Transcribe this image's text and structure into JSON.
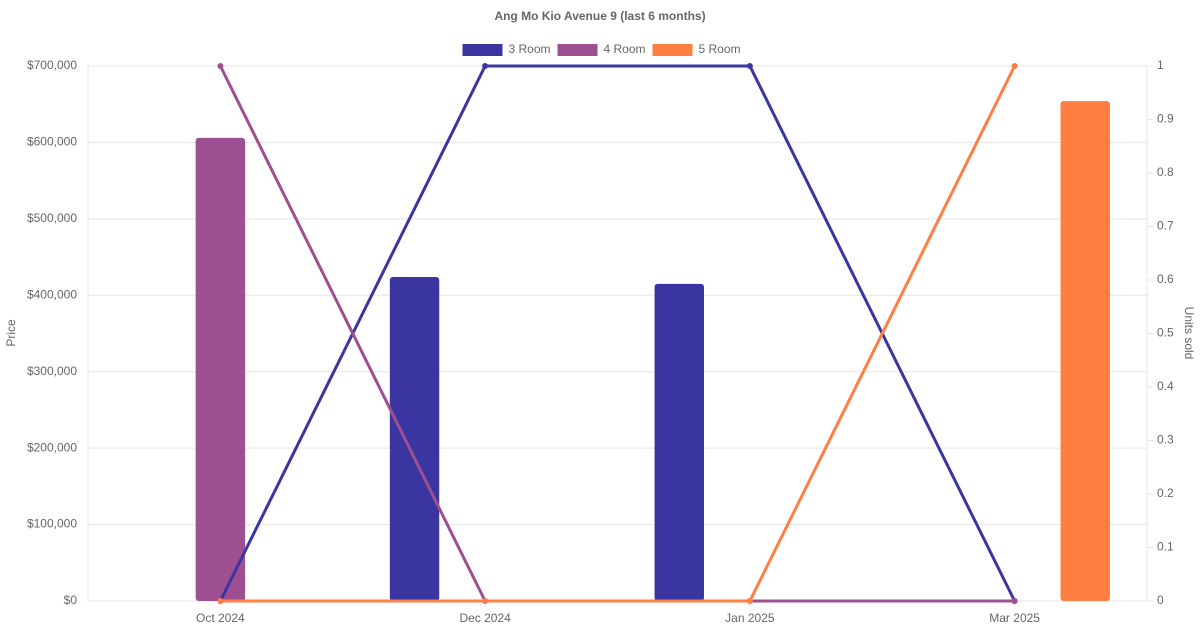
{
  "chart_data": {
    "type": "combo",
    "title": "Ang Mo Kio Avenue 9 (last 6 months)",
    "categories": [
      "Oct 2024",
      "Dec 2024",
      "Jan 2025",
      "Mar 2025"
    ],
    "series": [
      {
        "name": "3 Room",
        "color": "#3a35a0",
        "values": [
          null,
          424000,
          415000,
          null
        ],
        "y2_values": [
          0,
          1,
          1,
          0
        ]
      },
      {
        "name": "4 Room",
        "color": "#9d4f91",
        "values": [
          606000,
          null,
          null,
          null
        ],
        "y2_values": [
          1,
          0,
          0,
          0
        ]
      },
      {
        "name": "5 Room",
        "color": "#ff7e42",
        "values": [
          null,
          null,
          null,
          654000
        ],
        "y2_values": [
          0,
          0,
          0,
          1
        ]
      }
    ],
    "y_label": "Price",
    "y2_label": "Units sold",
    "ylim": [
      0,
      700000
    ],
    "yticks": [
      {
        "value": 0,
        "label": "$0"
      },
      {
        "value": 100000,
        "label": "$100,000"
      },
      {
        "value": 200000,
        "label": "$200,000"
      },
      {
        "value": 300000,
        "label": "$300,000"
      },
      {
        "value": 400000,
        "label": "$400,000"
      },
      {
        "value": 500000,
        "label": "$500,000"
      },
      {
        "value": 600000,
        "label": "$600,000"
      },
      {
        "value": 700000,
        "label": "$700,000"
      }
    ],
    "y2lim": [
      0,
      1
    ],
    "y2ticks": [
      0,
      0.1,
      0.2,
      0.3,
      0.4,
      0.5,
      0.6,
      0.7,
      0.8,
      0.9,
      1
    ],
    "grid": true,
    "legend": "top"
  }
}
